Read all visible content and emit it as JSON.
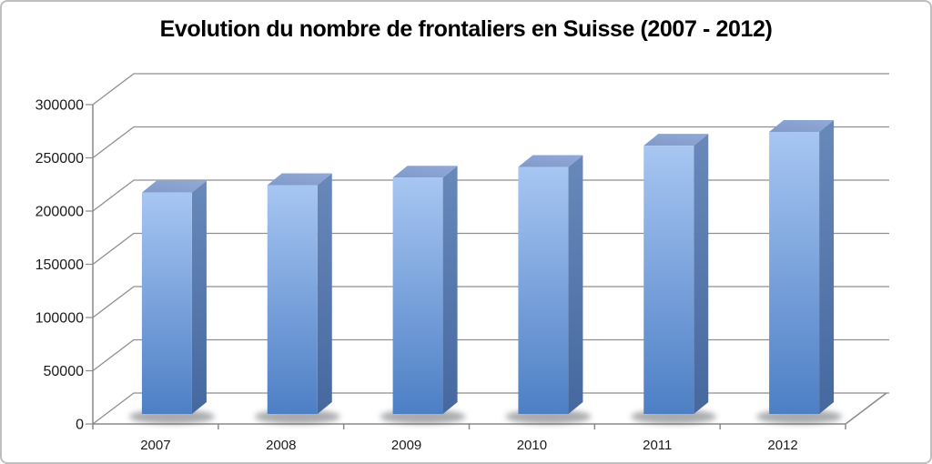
{
  "style": {
    "background": "#ffffff",
    "frame_border": "#bfbfbf",
    "gridline": "#8f8f8f",
    "axis_line": "#8a8a8a",
    "text": "#1b1b1b",
    "title_color": "#000000",
    "bar_front_top": "#a7c6f2",
    "bar_front_bottom": "#4d7fc5",
    "bar_side_top": "#6889ba",
    "bar_side_bottom": "#45689f",
    "bar_top_front": "#8099c8",
    "bar_top_back": "#92aad8",
    "shadow": "#54585e"
  },
  "chart_data": {
    "type": "bar",
    "effect_3d": true,
    "title": "Evolution du nombre de frontaliers en Suisse (2007 - 2012)",
    "xlabel": "",
    "ylabel": "",
    "categories": [
      "2007",
      "2008",
      "2009",
      "2010",
      "2011",
      "2012"
    ],
    "values": [
      208000,
      215000,
      222000,
      232000,
      252000,
      265000
    ],
    "ylim": [
      0,
      300000
    ],
    "ytick_step": 50000,
    "ytick_labels": [
      "0",
      "50000",
      "100000",
      "150000",
      "200000",
      "250000",
      "300000"
    ],
    "grid": true,
    "legend": "none"
  }
}
